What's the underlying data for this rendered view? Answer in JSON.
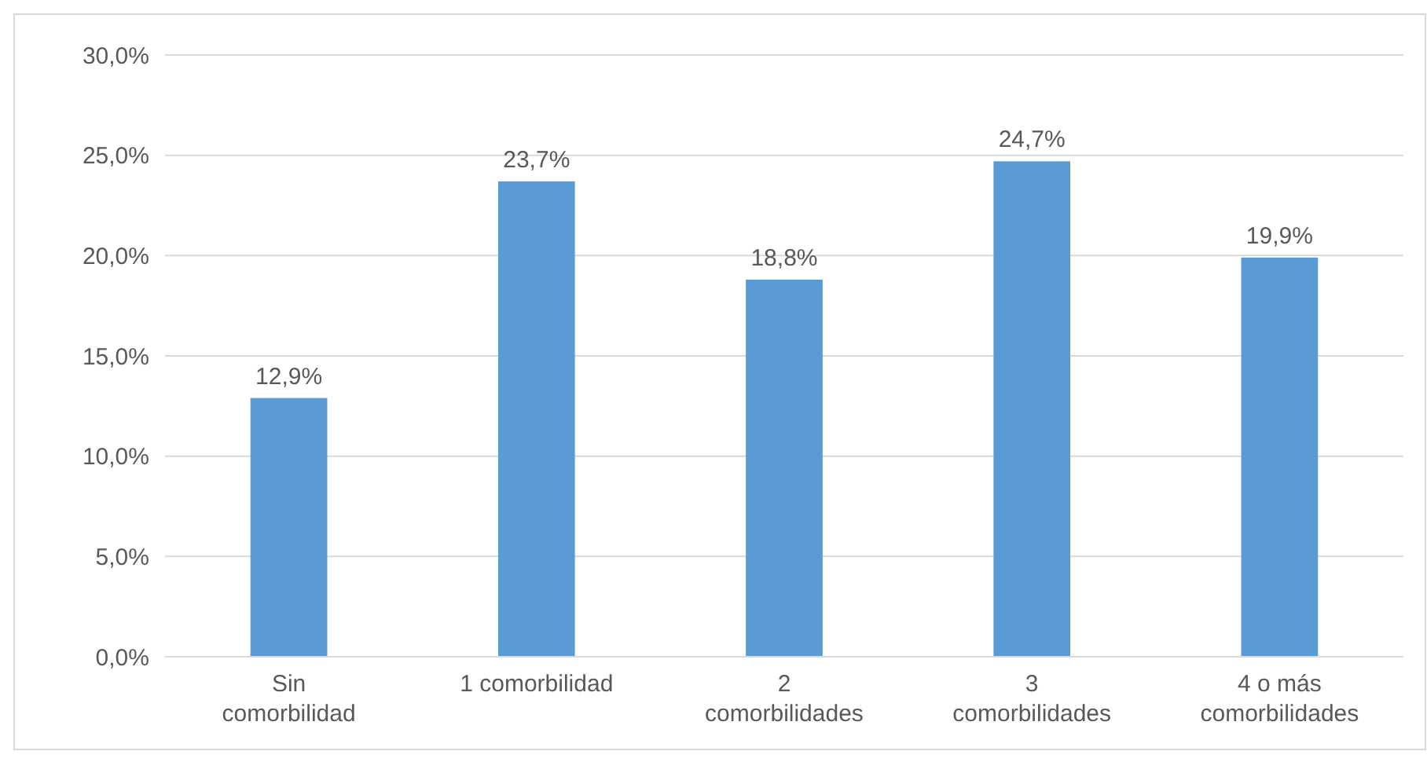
{
  "chart_data": {
    "type": "bar",
    "categories": [
      "Sin comorbilidad",
      "1 comorbilidad",
      "2 comorbilidades",
      "3 comorbilidades",
      "4 o más comorbilidades"
    ],
    "values": [
      12.9,
      23.7,
      18.8,
      24.7,
      19.9
    ],
    "value_labels": [
      "12,9%",
      "23,7%",
      "18,8%",
      "24,7%",
      "19,9%"
    ],
    "color": "#5b9bd5",
    "ylim": [
      0,
      30
    ],
    "yticks": [
      {
        "value": 0,
        "label": "0,0%"
      },
      {
        "value": 5,
        "label": "5,0%"
      },
      {
        "value": 10,
        "label": "10,0%"
      },
      {
        "value": 15,
        "label": "15,0%"
      },
      {
        "value": 20,
        "label": "20,0%"
      },
      {
        "value": 25,
        "label": "25,0%"
      },
      {
        "value": 30,
        "label": "30,0%"
      }
    ],
    "grid": "y"
  }
}
